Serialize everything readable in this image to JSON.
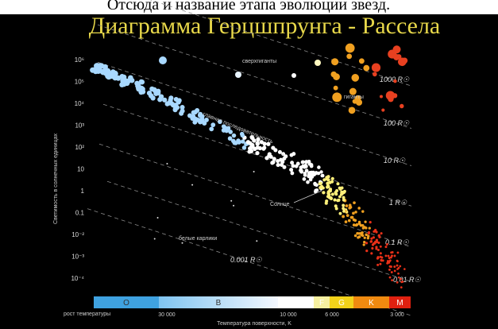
{
  "caption": "Отсюда и название этапа эволюции звезд.",
  "title": "Диаграмма Герцшпрунга - Рассела",
  "y_axis": {
    "title": "Светимость в солнечных единицах",
    "ticks": [
      "10⁶",
      "10⁵",
      "10⁴",
      "10³",
      "10²",
      "10",
      "1",
      "0.1",
      "10⁻²",
      "10⁻³",
      "10⁻⁴"
    ]
  },
  "x_axis": {
    "title": "Температура поверхности, K",
    "direction": "рост температуры",
    "ticks": [
      "30 000",
      "10 000",
      "6 000",
      "3 000"
    ]
  },
  "spectral_classes": [
    "O",
    "B",
    "A",
    "F",
    "G",
    "K",
    "M"
  ],
  "radius_lines": [
    "1000 R☉",
    "100 R☉",
    "10 R☉",
    "1 R☉",
    "0.1 R☉",
    "0.01 R☉",
    "0.001 R☉"
  ],
  "regions": {
    "supergiants": "сверхгиганты",
    "giants": "гиганты",
    "main_sequence": "главная последовательность",
    "sun": "Солнце",
    "white_dwarfs": "белые карлики"
  }
}
